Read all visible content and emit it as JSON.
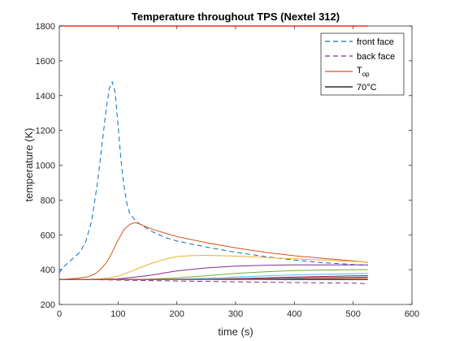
{
  "chart_data": {
    "type": "line",
    "title": "Temperature throughout TPS (Nextel 312)",
    "xlabel": "time (s)",
    "ylabel": "temperature (K)",
    "xlim": [
      0,
      600
    ],
    "ylim": [
      200,
      1800
    ],
    "xticks": [
      "0",
      "100",
      "200",
      "300",
      "400",
      "500",
      "600"
    ],
    "yticks": [
      "200",
      "400",
      "600",
      "800",
      "1000",
      "1200",
      "1400",
      "1600",
      "1800"
    ],
    "grid": false,
    "legend_position": "top-right",
    "legend": [
      {
        "label": "front face",
        "series": "front-face"
      },
      {
        "label": "back face",
        "series": "back-face"
      },
      {
        "label": "T",
        "subscript": "op",
        "series": "t-op"
      },
      {
        "label": "70°C",
        "series": "seventy-c"
      }
    ],
    "series": [
      {
        "id": "front-face",
        "color": "#0072BD",
        "dash": "dashed",
        "x": [
          0,
          5,
          15,
          25,
          35,
          45,
          55,
          65,
          72,
          80,
          85,
          90,
          95,
          100,
          105,
          110,
          115,
          120,
          130,
          140,
          150,
          160,
          180,
          200,
          250,
          300,
          350,
          400,
          450,
          500,
          525
        ],
        "y": [
          380,
          410,
          440,
          470,
          500,
          560,
          680,
          900,
          1100,
          1330,
          1440,
          1480,
          1420,
          1230,
          1030,
          880,
          780,
          720,
          680,
          655,
          635,
          615,
          585,
          565,
          530,
          500,
          475,
          455,
          440,
          430,
          425
        ]
      },
      {
        "id": "back-face",
        "color": "#7E2F8E",
        "dash": "dashed",
        "x": [
          0,
          50,
          100,
          200,
          300,
          400,
          500,
          525
        ],
        "y": [
          345,
          343,
          340,
          335,
          330,
          326,
          322,
          320
        ]
      },
      {
        "id": "t-op",
        "color": "#D95319",
        "dash": "solid",
        "x": [
          0,
          10,
          30,
          50,
          60,
          70,
          80,
          90,
          100,
          110,
          120,
          128,
          135,
          145,
          160,
          180,
          200,
          250,
          300,
          350,
          400,
          450,
          500,
          525
        ],
        "y": [
          343,
          345,
          350,
          360,
          375,
          400,
          440,
          500,
          570,
          630,
          660,
          670,
          665,
          650,
          630,
          610,
          590,
          555,
          525,
          500,
          480,
          465,
          450,
          442
        ]
      },
      {
        "id": "seventy-c",
        "color": "#000000",
        "dash": "solid",
        "x": [
          0,
          525
        ],
        "y": [
          343,
          343
        ]
      },
      {
        "id": "profile-1",
        "color": "#EDB120",
        "dash": "solid",
        "x": [
          0,
          50,
          80,
          100,
          120,
          140,
          160,
          180,
          200,
          220,
          250,
          300,
          350,
          400,
          450,
          500,
          525
        ],
        "y": [
          343,
          344,
          350,
          362,
          388,
          415,
          440,
          460,
          475,
          480,
          482,
          478,
          470,
          462,
          455,
          447,
          443
        ]
      },
      {
        "id": "profile-2",
        "color": "#7E2F8E",
        "dash": "solid",
        "x": [
          0,
          50,
          100,
          150,
          200,
          250,
          300,
          350,
          400,
          450,
          500,
          525
        ],
        "y": [
          343,
          343,
          347,
          365,
          393,
          410,
          420,
          425,
          427,
          427,
          427,
          427
        ]
      },
      {
        "id": "profile-3",
        "color": "#77AC30",
        "dash": "solid",
        "x": [
          0,
          100,
          150,
          200,
          250,
          300,
          350,
          400,
          450,
          500,
          525
        ],
        "y": [
          343,
          343,
          345,
          352,
          365,
          378,
          388,
          395,
          398,
          400,
          400
        ]
      },
      {
        "id": "profile-4",
        "color": "#4DBEEE",
        "dash": "solid",
        "x": [
          0,
          150,
          200,
          250,
          300,
          350,
          400,
          450,
          500,
          525
        ],
        "y": [
          343,
          343,
          345,
          350,
          357,
          364,
          370,
          374,
          377,
          378
        ]
      },
      {
        "id": "profile-5",
        "color": "#A2142F",
        "dash": "solid",
        "x": [
          0,
          200,
          250,
          300,
          350,
          400,
          450,
          500,
          525
        ],
        "y": [
          343,
          343,
          345,
          349,
          353,
          357,
          361,
          364,
          365
        ]
      },
      {
        "id": "profile-6",
        "color": "#0072BD",
        "dash": "solid",
        "x": [
          0,
          250,
          300,
          350,
          400,
          450,
          500,
          525
        ],
        "y": [
          343,
          343,
          345,
          348,
          351,
          354,
          356,
          357
        ]
      },
      {
        "id": "profile-7",
        "color": "#D95319",
        "dash": "solid",
        "x": [
          0,
          300,
          350,
          400,
          450,
          500,
          525
        ],
        "y": [
          343,
          343,
          345,
          347,
          349,
          350,
          351
        ]
      }
    ],
    "reference_lines": [
      {
        "id": "top-limit",
        "color": "#FF0000",
        "y": 1800,
        "x": [
          0,
          525
        ]
      }
    ]
  }
}
